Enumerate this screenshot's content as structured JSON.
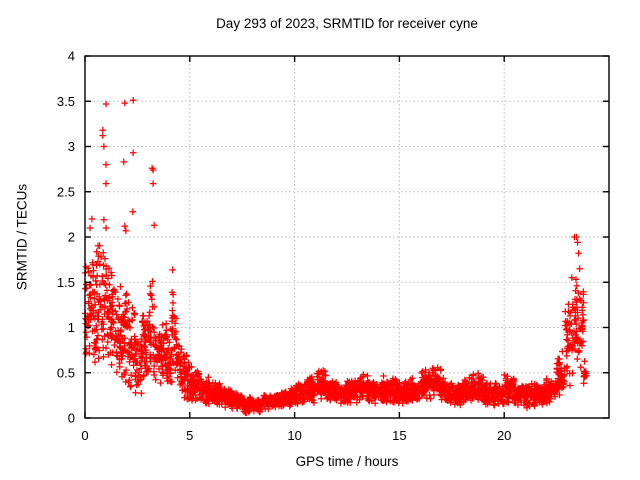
{
  "window": {
    "background": "#ffffff"
  },
  "chart_data": {
    "type": "scatter",
    "title": "Day 293 of 2023, SRMTID for receiver cyne",
    "xlabel": "GPS time / hours",
    "ylabel": "SRMTID / TECUs",
    "xlim": [
      0,
      25
    ],
    "ylim": [
      0,
      4
    ],
    "x_ticks": [
      0,
      5,
      10,
      15,
      20
    ],
    "y_ticks": [
      0,
      0.5,
      1,
      1.5,
      2,
      2.5,
      3,
      3.5,
      4
    ],
    "grid": true,
    "legend": "none",
    "marker": "plus",
    "marker_color": "#ff0000",
    "grid_color": "#b9b9b9",
    "axis_color": "#000000",
    "seed": 2023293,
    "scatter_bands": [
      [
        0.0,
        0.3,
        36,
        0.35,
        2.0
      ],
      [
        0.3,
        0.6,
        36,
        0.5,
        1.9
      ],
      [
        0.6,
        0.9,
        36,
        0.5,
        2.0
      ],
      [
        0.9,
        1.2,
        36,
        0.45,
        2.1
      ],
      [
        1.2,
        1.5,
        36,
        0.4,
        1.7
      ],
      [
        1.5,
        1.8,
        36,
        0.35,
        1.5
      ],
      [
        1.8,
        2.1,
        36,
        0.3,
        1.6
      ],
      [
        2.1,
        2.4,
        36,
        0.25,
        1.3
      ],
      [
        2.4,
        2.7,
        36,
        0.2,
        1.0
      ],
      [
        2.7,
        3.0,
        36,
        0.3,
        1.3
      ],
      [
        3.0,
        3.3,
        36,
        0.35,
        1.55
      ],
      [
        3.3,
        3.6,
        36,
        0.3,
        1.2
      ],
      [
        3.6,
        3.9,
        36,
        0.3,
        1.1
      ],
      [
        3.9,
        4.15,
        30,
        0.25,
        1.0
      ],
      [
        4.15,
        4.35,
        24,
        0.3,
        1.7
      ],
      [
        4.35,
        4.6,
        30,
        0.25,
        0.9
      ],
      [
        4.6,
        4.85,
        30,
        0.2,
        0.75
      ],
      [
        4.85,
        5.1,
        30,
        0.15,
        0.65
      ],
      [
        5.1,
        5.5,
        48,
        0.15,
        0.6
      ],
      [
        5.5,
        6.0,
        60,
        0.12,
        0.5
      ],
      [
        6.0,
        6.5,
        60,
        0.12,
        0.42
      ],
      [
        6.5,
        7.0,
        60,
        0.1,
        0.35
      ],
      [
        7.0,
        7.5,
        60,
        0.08,
        0.3
      ],
      [
        7.5,
        8.0,
        60,
        0.05,
        0.25
      ],
      [
        8.0,
        8.5,
        60,
        0.05,
        0.22
      ],
      [
        8.5,
        9.0,
        60,
        0.07,
        0.28
      ],
      [
        9.0,
        9.5,
        60,
        0.1,
        0.3
      ],
      [
        9.5,
        10.0,
        60,
        0.12,
        0.35
      ],
      [
        10.0,
        10.5,
        60,
        0.14,
        0.4
      ],
      [
        10.5,
        11.0,
        60,
        0.15,
        0.48
      ],
      [
        11.0,
        11.5,
        60,
        0.18,
        0.55
      ],
      [
        11.5,
        12.0,
        60,
        0.15,
        0.45
      ],
      [
        12.0,
        12.5,
        60,
        0.14,
        0.4
      ],
      [
        12.5,
        13.0,
        60,
        0.15,
        0.45
      ],
      [
        13.0,
        13.5,
        60,
        0.18,
        0.5
      ],
      [
        13.5,
        14.0,
        60,
        0.15,
        0.45
      ],
      [
        14.0,
        14.5,
        60,
        0.15,
        0.5
      ],
      [
        14.5,
        15.0,
        60,
        0.15,
        0.45
      ],
      [
        15.0,
        15.5,
        60,
        0.12,
        0.42
      ],
      [
        15.5,
        16.0,
        60,
        0.15,
        0.45
      ],
      [
        16.0,
        16.5,
        60,
        0.18,
        0.55
      ],
      [
        16.5,
        17.0,
        60,
        0.18,
        0.6
      ],
      [
        17.0,
        17.5,
        60,
        0.15,
        0.45
      ],
      [
        17.5,
        18.0,
        60,
        0.12,
        0.4
      ],
      [
        18.0,
        18.5,
        60,
        0.15,
        0.45
      ],
      [
        18.5,
        19.0,
        60,
        0.15,
        0.5
      ],
      [
        19.0,
        19.5,
        60,
        0.12,
        0.4
      ],
      [
        19.5,
        20.0,
        60,
        0.1,
        0.4
      ],
      [
        20.0,
        20.5,
        60,
        0.14,
        0.5
      ],
      [
        20.5,
        21.0,
        60,
        0.12,
        0.4
      ],
      [
        21.0,
        21.5,
        60,
        0.1,
        0.4
      ],
      [
        21.5,
        22.0,
        60,
        0.12,
        0.4
      ],
      [
        22.0,
        22.5,
        60,
        0.15,
        0.45
      ],
      [
        22.5,
        22.9,
        44,
        0.2,
        0.8
      ],
      [
        22.9,
        23.2,
        34,
        0.3,
        1.3
      ],
      [
        23.2,
        23.5,
        34,
        0.4,
        1.75
      ],
      [
        23.5,
        23.8,
        34,
        0.3,
        1.7
      ],
      [
        23.8,
        23.93,
        12,
        0.35,
        0.7
      ]
    ],
    "outlier_points": [
      [
        0.24,
        2.1
      ],
      [
        0.33,
        2.2
      ],
      [
        0.85,
        3.18
      ],
      [
        0.85,
        3.12
      ],
      [
        0.9,
        3.0
      ],
      [
        0.9,
        2.19
      ],
      [
        1.0,
        3.47
      ],
      [
        1.0,
        2.8
      ],
      [
        1.0,
        2.59
      ],
      [
        1.0,
        2.1
      ],
      [
        1.85,
        2.83
      ],
      [
        1.9,
        3.48
      ],
      [
        1.9,
        2.12
      ],
      [
        1.95,
        2.07
      ],
      [
        2.3,
        3.51
      ],
      [
        2.3,
        2.93
      ],
      [
        2.28,
        2.28
      ],
      [
        3.2,
        2.76
      ],
      [
        3.25,
        2.74
      ],
      [
        3.25,
        2.59
      ],
      [
        3.3,
        2.13
      ],
      [
        23.35,
        2.0
      ],
      [
        23.45,
        2.0
      ],
      [
        23.5,
        1.94
      ],
      [
        23.55,
        1.82
      ],
      [
        23.6,
        1.65
      ]
    ]
  }
}
